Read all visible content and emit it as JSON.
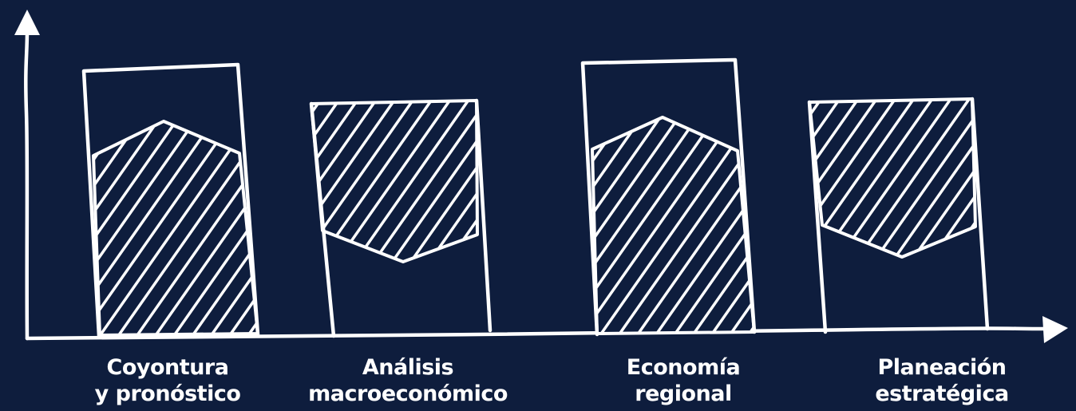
{
  "colors": {
    "background": "#0e1d3d",
    "ink": "#ffffff"
  },
  "categories": [
    {
      "line1": "Coyontura",
      "line2": "y pronóstico",
      "fill_shape": "bottom-peak"
    },
    {
      "line1": "Análisis",
      "line2": "macroeconómico",
      "fill_shape": "top-dip"
    },
    {
      "line1": "Economía",
      "line2": "regional",
      "fill_shape": "bottom-peak"
    },
    {
      "line1": "Planeación",
      "line2": "estratégica",
      "fill_shape": "top-dip"
    }
  ]
}
